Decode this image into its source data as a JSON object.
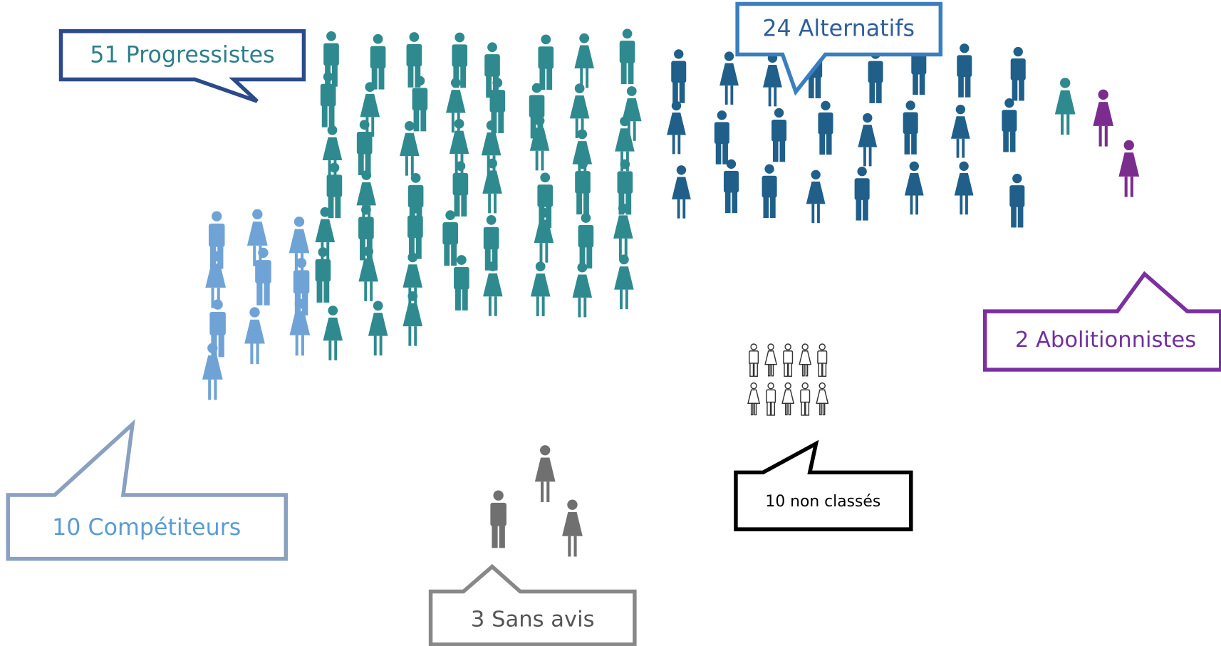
{
  "callouts": [
    {
      "label": "51 Progressistes"
    },
    {
      "label": "24 Alternatifs"
    },
    {
      "label": "2 Abolitionnistes"
    },
    {
      "label": "10 Compétiteurs"
    },
    {
      "label": "10 non classés"
    },
    {
      "label": "3 Sans avis"
    }
  ]
}
